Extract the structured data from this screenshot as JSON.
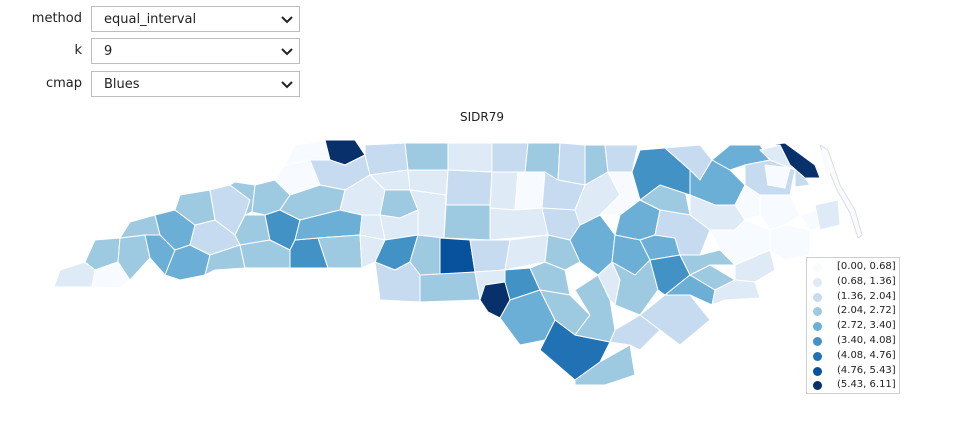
{
  "controls": {
    "method": {
      "label": "method",
      "value": "equal_interval"
    },
    "k": {
      "label": "k",
      "value": "9"
    },
    "cmap": {
      "label": "cmap",
      "value": "Blues"
    }
  },
  "map": {
    "title": "SIDR79",
    "legend": [
      {
        "label": "[0.00, 0.68]",
        "color": "#f7fbff"
      },
      {
        "label": "(0.68, 1.36]",
        "color": "#deebf7"
      },
      {
        "label": "(1.36, 2.04]",
        "color": "#c6dbef"
      },
      {
        "label": "(2.04, 2.72]",
        "color": "#9ecae1"
      },
      {
        "label": "(2.72, 3.40]",
        "color": "#6baed6"
      },
      {
        "label": "(3.40, 4.08]",
        "color": "#4292c6"
      },
      {
        "label": "(4.08, 4.76]",
        "color": "#2171b5"
      },
      {
        "label": "(4.76, 5.43]",
        "color": "#08519c"
      },
      {
        "label": "(5.43, 6.11]",
        "color": "#08306b"
      }
    ]
  }
}
